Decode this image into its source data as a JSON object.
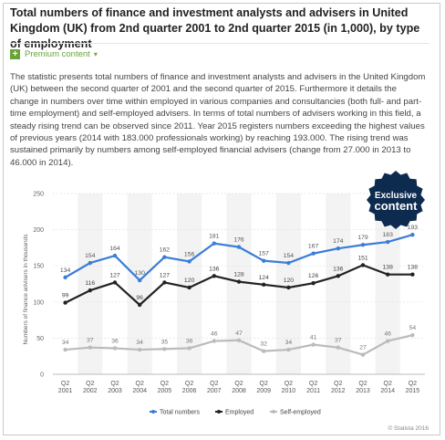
{
  "header": {
    "title": "Total numbers of finance and investment analysts and advisers in United Kingdom (UK) from 2nd quarter 2001 to 2nd quarter 2015 (in 1,000), by type of employment",
    "premium_label": "Premium content"
  },
  "description": "The statistic presents total numbers of finance and investment analysts and advisers in the United Kingdom (UK) between the second quarter of 2001 and the second quarter of 2015. Furthermore it details the change in numbers over time within employed in various companies and consultancies (both full- and part-time employment) and self-employed advisers. In terms of total numbers of advisers working in this field, a steady rising trend can be observed since 2011. Year 2015 registers numbers exceeding the highest values of previous years (2014 with 183.000 professionals working) by reaching 193.000. The rising trend was sustained primarily by numbers among self-employed financial advisers (change from 27.000 in 2013 to 46.000 in 2014).",
  "badge": {
    "line1": "Exclusive",
    "line2": "content"
  },
  "footer": {
    "source": "© Statista 2016"
  },
  "colors": {
    "total": "#3b7dd8",
    "employed": "#222222",
    "self": "#bbbbbb",
    "badge": "#0d2a4f",
    "accent": "#6aa339"
  },
  "chart_data": {
    "type": "line",
    "categories": [
      "Q2 2001",
      "Q2 2002",
      "Q2 2003",
      "Q2 2004",
      "Q2 2005",
      "Q2 2006",
      "Q2 2007",
      "Q2 2008",
      "Q2 2009",
      "Q2 2010",
      "Q2 2011",
      "Q2 2012",
      "Q2 2013",
      "Q2 2014",
      "Q2 2015"
    ],
    "series": [
      {
        "name": "Total numbers",
        "values": [
          134,
          154,
          164,
          130,
          162,
          156,
          181,
          176,
          157,
          154,
          167,
          174,
          179,
          183,
          193
        ],
        "labels": [
          "134",
          "154",
          "164",
          "130",
          "162",
          "156",
          "181",
          "176",
          "157",
          "154",
          "167",
          "174",
          "179",
          "183",
          "193"
        ]
      },
      {
        "name": "Employed",
        "values": [
          99,
          116,
          127,
          96,
          127,
          120,
          136,
          128,
          124,
          120,
          126,
          136,
          151,
          138,
          138
        ],
        "labels": [
          "99",
          "116",
          "127",
          "96",
          "127",
          "120",
          "136",
          "128",
          "124",
          "120",
          "126",
          "136",
          "151",
          "138",
          "138"
        ]
      },
      {
        "name": "Self-employed",
        "values": [
          34,
          37,
          36,
          34,
          35,
          36,
          46,
          47,
          32,
          34,
          41,
          37,
          27,
          46,
          54
        ],
        "labels": [
          "34",
          "37",
          "36",
          "34",
          "35",
          "36",
          "46",
          "47",
          "32",
          "34",
          "41",
          "37",
          "27",
          "46",
          "54"
        ]
      }
    ],
    "ylabel": "Numbers of finance advisers in thousands",
    "xlabel": "",
    "ylim": [
      0,
      250
    ],
    "yticks": [
      0,
      50,
      100,
      150,
      200,
      250
    ],
    "grid": true,
    "legend": "bottom-center"
  }
}
